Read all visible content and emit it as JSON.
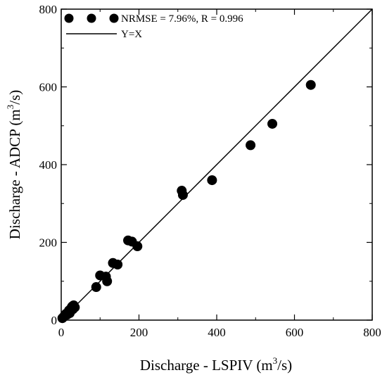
{
  "chart_data": {
    "type": "scatter",
    "xlabel": "Discharge - LSPIV",
    "xunit_prefix": "(m",
    "xunit_sup": "3",
    "xunit_suffix": "/s)",
    "ylabel": "Discharge - ADCP",
    "yunit_prefix": "(m",
    "yunit_sup": "3",
    "yunit_suffix": "/s)",
    "xlim": [
      0,
      800
    ],
    "ylim": [
      0,
      800
    ],
    "xticks": [
      0,
      200,
      400,
      600,
      800
    ],
    "yticks": [
      0,
      200,
      400,
      600,
      800
    ],
    "xticks_minor": [
      100,
      300,
      500,
      700
    ],
    "yticks_minor": [
      100,
      300,
      500,
      700
    ],
    "grid": false,
    "legend_position": "top-left",
    "series": [
      {
        "name": "NRMSE = 7.96%, R = 0.996",
        "marker": "filled-circle",
        "color": "#000000",
        "points": [
          {
            "x": 3,
            "y": 5
          },
          {
            "x": 6,
            "y": 8
          },
          {
            "x": 9,
            "y": 12
          },
          {
            "x": 12,
            "y": 16
          },
          {
            "x": 15,
            "y": 14
          },
          {
            "x": 18,
            "y": 20
          },
          {
            "x": 20,
            "y": 25
          },
          {
            "x": 22,
            "y": 18
          },
          {
            "x": 25,
            "y": 30
          },
          {
            "x": 28,
            "y": 35
          },
          {
            "x": 30,
            "y": 28
          },
          {
            "x": 32,
            "y": 38
          },
          {
            "x": 35,
            "y": 33
          },
          {
            "x": 90,
            "y": 85
          },
          {
            "x": 100,
            "y": 115
          },
          {
            "x": 115,
            "y": 112
          },
          {
            "x": 118,
            "y": 100
          },
          {
            "x": 133,
            "y": 147
          },
          {
            "x": 145,
            "y": 143
          },
          {
            "x": 172,
            "y": 205
          },
          {
            "x": 182,
            "y": 202
          },
          {
            "x": 196,
            "y": 190
          },
          {
            "x": 310,
            "y": 333
          },
          {
            "x": 313,
            "y": 322
          },
          {
            "x": 388,
            "y": 360
          },
          {
            "x": 487,
            "y": 450
          },
          {
            "x": 543,
            "y": 505
          },
          {
            "x": 642,
            "y": 605
          }
        ]
      },
      {
        "name": "Y=X",
        "marker": "line",
        "color": "#000000",
        "points": [
          {
            "x": 0,
            "y": 0
          },
          {
            "x": 800,
            "y": 800
          }
        ]
      }
    ]
  }
}
